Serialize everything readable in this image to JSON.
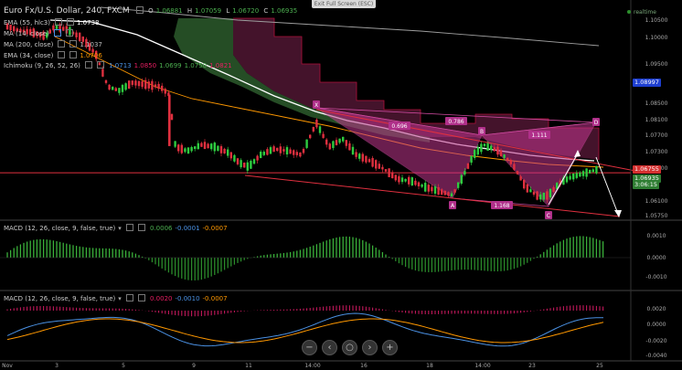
{
  "toolbar": {
    "exit_fullscreen": "Exit Full Screen (ESC)",
    "realtime": "realtime"
  },
  "header": {
    "symbol": "Euro Fx/U.S. Dollar, 240, FXCM",
    "ohlc": [
      {
        "label": "O",
        "value": "1.06881"
      },
      {
        "label": "H",
        "value": "1.07059"
      },
      {
        "label": "L",
        "value": "1.06720"
      },
      {
        "label": "C",
        "value": "1.06935"
      }
    ]
  },
  "indicators": [
    {
      "label": "EMA (55, hlc3)",
      "value": "1.0738",
      "color": "#ffffff"
    },
    {
      "label": "MA (14, close)",
      "value": "",
      "color": "#4a90e2"
    },
    {
      "label": "MA (200, close)",
      "value": "1.1037",
      "color": "#9e9e9e"
    },
    {
      "label": "EMA (34, close)",
      "value": "1.0706",
      "color": "#ff9800"
    },
    {
      "label": "Ichimoku (9, 26, 52, 26)",
      "values": [
        {
          "v": "1.0713",
          "color": "#4a90e2"
        },
        {
          "v": "1.0850",
          "color": "#e91e63"
        },
        {
          "v": "1.0699",
          "color": "#4caf50"
        },
        {
          "v": "1.0750",
          "color": "#4caf50"
        },
        {
          "v": "1.0821",
          "color": "#e91e63"
        }
      ]
    }
  ],
  "price_axis": {
    "ticks": [
      "1.10500",
      "1.10000",
      "1.09500",
      "1.08500",
      "1.08100",
      "1.07700",
      "1.07300",
      "1.06900",
      "1.06100",
      "1.05750"
    ],
    "current_tags": [
      {
        "text": "1.08997",
        "color": "#1e3fd1"
      },
      {
        "text": "1.06755",
        "color": "#d32f2f"
      },
      {
        "text": "1.06935",
        "color": "#2e7d32"
      },
      {
        "text": "3:06:15",
        "color": "#2e7d32"
      }
    ]
  },
  "pattern": {
    "points": [
      "X",
      "A",
      "B",
      "C",
      "D"
    ],
    "ratios": [
      "0.696",
      "0.786",
      "1.111",
      "1.168"
    ],
    "color": "#b0308a"
  },
  "macd1": {
    "label": "MACD (12, 26, close, 9, false, true)",
    "values": [
      {
        "v": "0.0006",
        "color": "#4caf50"
      },
      {
        "v": "-0.0001",
        "color": "#4a90e2"
      },
      {
        "v": "-0.0007",
        "color": "#ff9800"
      }
    ],
    "ticks": [
      "0.0010",
      "0.0000",
      "-0.0010"
    ]
  },
  "macd2": {
    "label": "MACD (12, 26, close, 9, false, true)",
    "values": [
      {
        "v": "0.0020",
        "color": "#e91e63"
      },
      {
        "v": "-0.0010",
        "color": "#4a90e2"
      },
      {
        "v": "-0.0007",
        "color": "#ff9800"
      }
    ],
    "ticks": [
      "0.0020",
      "0.0000",
      "-0.0020",
      "-0.0040"
    ]
  },
  "time_axis": [
    "Nov",
    "3",
    "5",
    "9",
    "11",
    "14:00",
    "16",
    "18",
    "14:00",
    "23",
    "25"
  ],
  "zoom": {
    "buttons": [
      "−",
      "‹",
      "○",
      "›",
      "+"
    ],
    "icons": [
      "zoom-out-icon",
      "scroll-left-icon",
      "reset-icon",
      "scroll-right-icon",
      "zoom-in-icon"
    ]
  },
  "colors": {
    "up": "#2ecc40",
    "down": "#e0303f",
    "ema55": "#ffffff",
    "ema34": "#ff9800",
    "ma200": "#9e9e9e",
    "cloud_up": "#2b5a2b",
    "cloud_down": "#4b1530",
    "grid": "#1a1a1a"
  }
}
